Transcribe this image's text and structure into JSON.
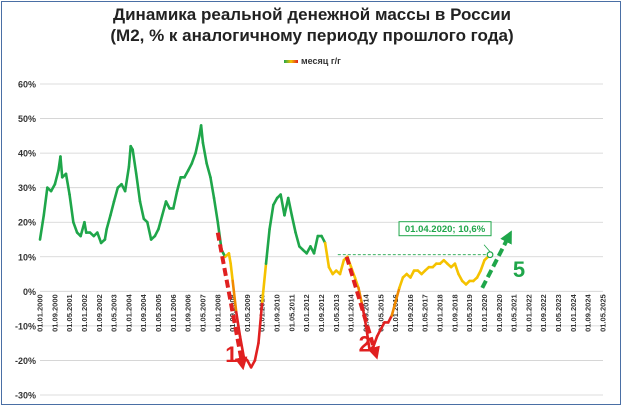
{
  "colors": {
    "green": "#1fa64a",
    "yellow": "#f5c200",
    "orange": "#f08a00",
    "red": "#e02020",
    "frame": "#4a6fa5"
  },
  "chart_data": {
    "type": "line",
    "title": "Динамика реальной денежной массы в России",
    "subtitle": "(М2, % к аналогичному периоду прошлого года)",
    "legend": [
      "месяц г/г"
    ],
    "legend_position": "top-center",
    "grid": "horizontal",
    "ylim": [
      -30,
      60
    ],
    "yticks": [
      "60%",
      "50%",
      "40%",
      "30%",
      "20%",
      "10%",
      "0%",
      "-10%",
      "-20%",
      "-30%"
    ],
    "xticks": [
      "01.01.2000",
      "01.09.2000",
      "01.05.2001",
      "01.01.2002",
      "01.09.2002",
      "01.05.2003",
      "01.01.2004",
      "01.09.2004",
      "01.05.2005",
      "01.01.2006",
      "01.09.2006",
      "01.05.2007",
      "01.01.2008",
      "01.09.2008",
      "01.05.2009",
      "01.01.2010",
      "01.09.2010",
      "01.05.2011",
      "01.01.2012",
      "01.09.2012",
      "01.05.2013",
      "01.01.2014",
      "01.09.2014",
      "01.05.2015",
      "01.01.2016",
      "01.09.2016",
      "01.05.2017",
      "01.01.2018",
      "01.09.2018",
      "01.05.2019",
      "01.01.2020",
      "01.09.2020",
      "01.05.2021",
      "01.01.2022",
      "01.09.2022",
      "01.05.2023",
      "01.01.2024",
      "01.09.2024",
      "01.05.2025"
    ],
    "series": [
      {
        "name": "месяц г/г",
        "points": [
          [
            2000.0,
            15
          ],
          [
            2000.17,
            22
          ],
          [
            2000.33,
            30
          ],
          [
            2000.5,
            29
          ],
          [
            2000.67,
            31
          ],
          [
            2000.83,
            35
          ],
          [
            2000.92,
            39
          ],
          [
            2001.0,
            33
          ],
          [
            2001.17,
            34
          ],
          [
            2001.33,
            28
          ],
          [
            2001.5,
            20
          ],
          [
            2001.67,
            17
          ],
          [
            2001.83,
            16
          ],
          [
            2002.0,
            20
          ],
          [
            2002.08,
            17
          ],
          [
            2002.25,
            17
          ],
          [
            2002.42,
            16
          ],
          [
            2002.58,
            17
          ],
          [
            2002.75,
            14
          ],
          [
            2002.92,
            15
          ],
          [
            2003.0,
            18
          ],
          [
            2003.17,
            22
          ],
          [
            2003.33,
            26
          ],
          [
            2003.5,
            30
          ],
          [
            2003.67,
            31
          ],
          [
            2003.83,
            29
          ],
          [
            2004.0,
            36
          ],
          [
            2004.08,
            42
          ],
          [
            2004.17,
            41
          ],
          [
            2004.33,
            34
          ],
          [
            2004.5,
            26
          ],
          [
            2004.67,
            21
          ],
          [
            2004.83,
            20
          ],
          [
            2005.0,
            15
          ],
          [
            2005.17,
            16
          ],
          [
            2005.33,
            18
          ],
          [
            2005.5,
            22
          ],
          [
            2005.67,
            26
          ],
          [
            2005.83,
            24
          ],
          [
            2006.0,
            24
          ],
          [
            2006.17,
            29
          ],
          [
            2006.33,
            33
          ],
          [
            2006.5,
            33
          ],
          [
            2006.67,
            35
          ],
          [
            2006.83,
            37
          ],
          [
            2007.0,
            40
          ],
          [
            2007.17,
            45
          ],
          [
            2007.25,
            48
          ],
          [
            2007.33,
            43
          ],
          [
            2007.5,
            37
          ],
          [
            2007.67,
            33
          ],
          [
            2007.83,
            27
          ],
          [
            2008.0,
            20
          ],
          [
            2008.17,
            12
          ],
          [
            2008.33,
            10
          ],
          [
            2008.5,
            11
          ],
          [
            2008.58,
            8
          ],
          [
            2008.67,
            3
          ],
          [
            2008.83,
            -6
          ],
          [
            2009.0,
            -13
          ],
          [
            2009.17,
            -19
          ],
          [
            2009.33,
            -20
          ],
          [
            2009.5,
            -22
          ],
          [
            2009.67,
            -20
          ],
          [
            2009.83,
            -15
          ],
          [
            2010.0,
            -3
          ],
          [
            2010.17,
            8
          ],
          [
            2010.33,
            18
          ],
          [
            2010.5,
            25
          ],
          [
            2010.67,
            27
          ],
          [
            2010.83,
            28
          ],
          [
            2011.0,
            22
          ],
          [
            2011.17,
            27
          ],
          [
            2011.33,
            22
          ],
          [
            2011.5,
            17
          ],
          [
            2011.67,
            13
          ],
          [
            2011.83,
            12
          ],
          [
            2012.0,
            11
          ],
          [
            2012.17,
            13
          ],
          [
            2012.33,
            11
          ],
          [
            2012.5,
            16
          ],
          [
            2012.67,
            16
          ],
          [
            2012.83,
            14
          ],
          [
            2013.0,
            7
          ],
          [
            2013.17,
            5
          ],
          [
            2013.33,
            6
          ],
          [
            2013.5,
            5
          ],
          [
            2013.67,
            9
          ],
          [
            2013.83,
            10
          ],
          [
            2014.0,
            7
          ],
          [
            2014.17,
            4
          ],
          [
            2014.33,
            1
          ],
          [
            2014.5,
            -4
          ],
          [
            2014.67,
            -10
          ],
          [
            2014.83,
            -17
          ],
          [
            2015.0,
            -16
          ],
          [
            2015.17,
            -13
          ],
          [
            2015.33,
            -11
          ],
          [
            2015.5,
            -9
          ],
          [
            2015.67,
            -9
          ],
          [
            2015.83,
            -7
          ],
          [
            2016.0,
            -3
          ],
          [
            2016.17,
            1
          ],
          [
            2016.33,
            4
          ],
          [
            2016.5,
            5
          ],
          [
            2016.67,
            4
          ],
          [
            2016.83,
            6
          ],
          [
            2017.0,
            6
          ],
          [
            2017.17,
            5
          ],
          [
            2017.33,
            6
          ],
          [
            2017.5,
            7
          ],
          [
            2017.67,
            7
          ],
          [
            2017.83,
            8
          ],
          [
            2018.0,
            8
          ],
          [
            2018.17,
            9
          ],
          [
            2018.33,
            8
          ],
          [
            2018.5,
            7
          ],
          [
            2018.67,
            8
          ],
          [
            2018.83,
            5
          ],
          [
            2019.0,
            3
          ],
          [
            2019.17,
            2
          ],
          [
            2019.33,
            3
          ],
          [
            2019.5,
            3
          ],
          [
            2019.67,
            4
          ],
          [
            2019.83,
            6
          ],
          [
            2020.0,
            9
          ],
          [
            2020.25,
            10.6
          ]
        ]
      }
    ],
    "reference_line": {
      "y": 10.6,
      "from": 2013.4,
      "to": 2020.25,
      "style": "dashed"
    },
    "annotations": [
      {
        "text": "01.04.2020; 10,6%",
        "x": 2020.25,
        "y": 10.6
      },
      {
        "text": "1",
        "arrow": "down",
        "color": "red",
        "from": [
          2008.0,
          17
        ],
        "to": [
          2009.1,
          -21
        ]
      },
      {
        "text": "2",
        "arrow": "down",
        "color": "red",
        "from": [
          2013.8,
          10
        ],
        "to": [
          2015.1,
          -18
        ]
      },
      {
        "text": "5",
        "arrow": "up",
        "color": "green",
        "from": [
          2019.9,
          1
        ],
        "to": [
          2021.1,
          16
        ]
      }
    ]
  }
}
